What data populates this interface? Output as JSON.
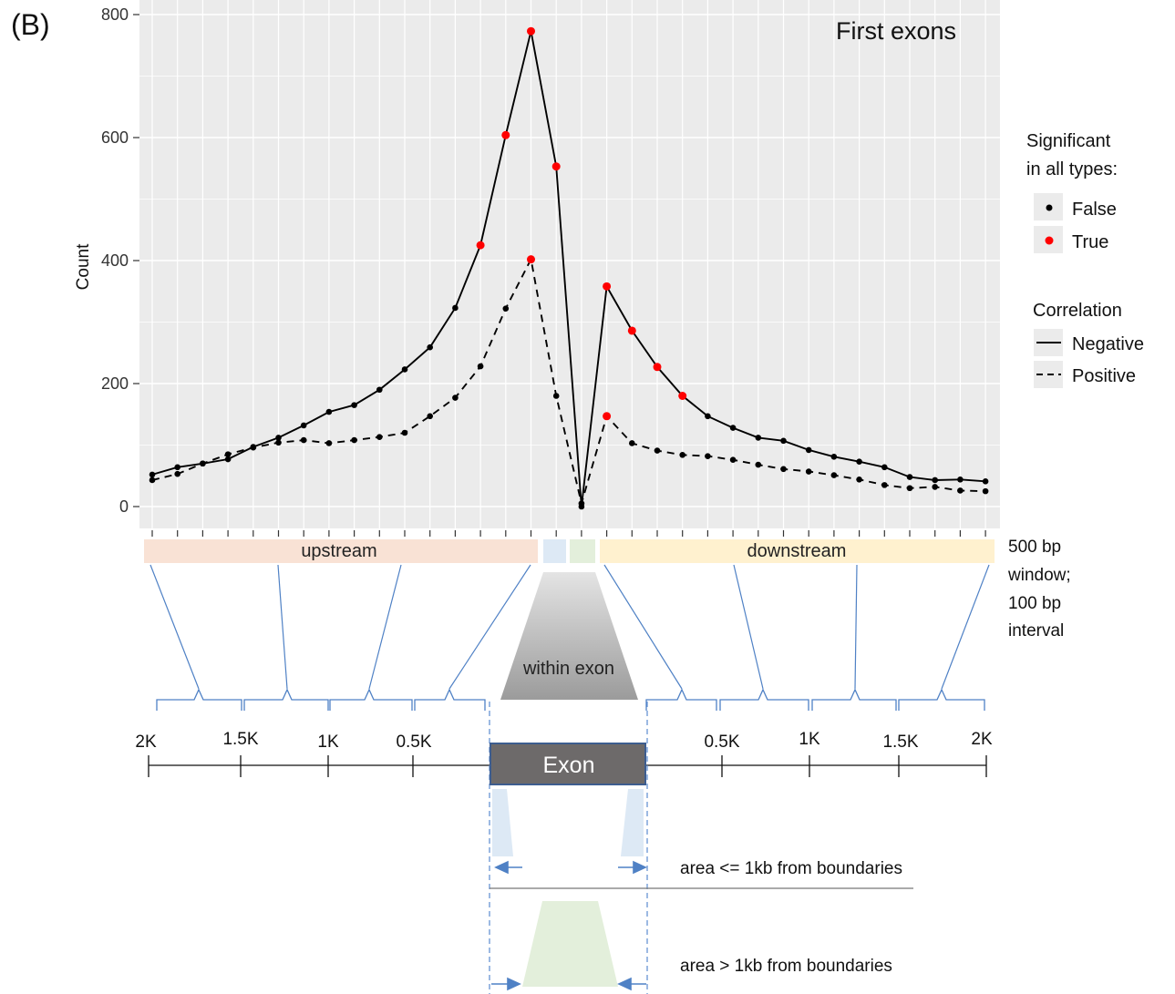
{
  "panel_label": "(B)",
  "chart_data": {
    "type": "line",
    "title": "First exons",
    "xlabel": "",
    "ylabel": "Count",
    "ylim": [
      0,
      800
    ],
    "yticks": [
      0,
      200,
      400,
      600,
      800
    ],
    "grid": true,
    "legend_placement": "right",
    "point_count": 34,
    "series": [
      {
        "name": "Negative",
        "line": "solid",
        "values": [
          52,
          64,
          70,
          77,
          97,
          112,
          132,
          154,
          165,
          190,
          223,
          259,
          323,
          425,
          604,
          773,
          553,
          0,
          358,
          286,
          227,
          180,
          147,
          128,
          112,
          107,
          92,
          81,
          73,
          64,
          48,
          43,
          44,
          41
        ],
        "significant": [
          false,
          false,
          false,
          false,
          false,
          false,
          false,
          false,
          false,
          false,
          false,
          false,
          false,
          true,
          true,
          true,
          true,
          false,
          true,
          true,
          true,
          true,
          false,
          false,
          false,
          false,
          false,
          false,
          false,
          false,
          false,
          false,
          false,
          false
        ]
      },
      {
        "name": "Positive",
        "line": "dashed",
        "values": [
          43,
          53,
          70,
          85,
          96,
          104,
          108,
          103,
          108,
          113,
          120,
          147,
          177,
          228,
          322,
          402,
          180,
          5,
          147,
          103,
          91,
          84,
          82,
          76,
          68,
          61,
          57,
          51,
          44,
          35,
          30,
          32,
          26,
          25
        ],
        "significant": [
          false,
          false,
          false,
          false,
          false,
          false,
          false,
          false,
          false,
          false,
          false,
          false,
          false,
          false,
          false,
          true,
          false,
          false,
          true,
          false,
          false,
          false,
          false,
          false,
          false,
          false,
          false,
          false,
          false,
          false,
          false,
          false,
          false,
          false
        ]
      }
    ],
    "legend": {
      "significant_title_1": "Significant",
      "significant_title_2": "in all types:",
      "false_label": "False",
      "true_label": "True",
      "correlation_title": "Correlation",
      "negative_label": "Negative",
      "positive_label": "Positive"
    },
    "colors": {
      "significant_false": "#000000",
      "significant_true": "#ff0000",
      "panel_bg": "#ebebeb",
      "grid": "#ffffff"
    }
  },
  "schematic": {
    "upstream_label": "upstream",
    "downstream_label": "downstream",
    "window_note": [
      "500 bp",
      "window;",
      "100 bp",
      "interval"
    ],
    "within_exon_label": "within exon",
    "exon_label": "Exon",
    "upstream_ticks": [
      "2K",
      "1.5K",
      "1K",
      "0.5K"
    ],
    "downstream_ticks": [
      "0.5K",
      "1K",
      "1.5K",
      "2K"
    ],
    "near_boundary_label": "area <= 1kb from boundaries",
    "far_boundary_label": "area > 1kb from boundaries",
    "colors": {
      "upstream": "#f9e2d5",
      "downstream": "#fff1cf",
      "near": "#dde9f5",
      "far": "#e3efdb",
      "exon": "#6d6a6a",
      "bracket": "#4f81c5"
    }
  }
}
